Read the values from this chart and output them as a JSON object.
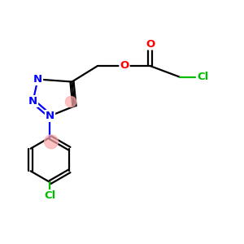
{
  "bg_color": "#ffffff",
  "atom_colors": {
    "N": "#0000ff",
    "O": "#ff0000",
    "Cl": "#00bb00",
    "C": "#000000"
  },
  "bond_color": "#000000",
  "bond_width": 1.6,
  "font_size_atom": 9.5,
  "fig_size": [
    3.0,
    3.0
  ],
  "dpi": 100,
  "xlim": [
    0,
    10
  ],
  "ylim": [
    0,
    10
  ]
}
